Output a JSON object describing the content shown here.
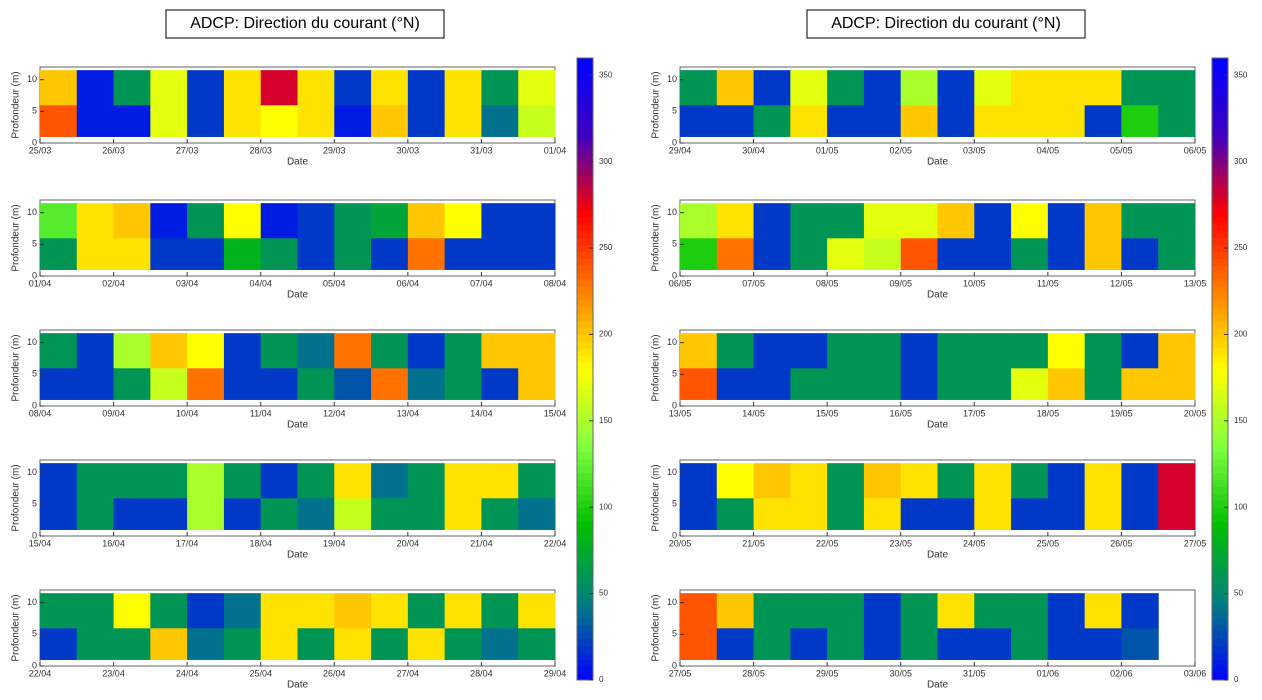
{
  "chart_data": [
    {
      "type": "heatmap",
      "title": "ADCP: Direction du courant (°N)",
      "x_label": "Date",
      "y_label": "Profondeur (m)",
      "categories": [
        "25/03",
        "26/03",
        "27/03",
        "28/03",
        "29/03",
        "30/03",
        "31/03",
        "01/04"
      ],
      "ylim": [
        0,
        12
      ],
      "yticks": [
        0,
        5,
        10
      ],
      "y_bins": [
        1,
        6,
        11.5
      ],
      "values": [
        [
          240,
          10,
          10,
          170,
          20,
          190,
          180,
          190,
          10,
          200,
          20,
          190,
          40,
          160
        ],
        [
          200,
          10,
          60,
          170,
          20,
          190,
          280,
          190,
          20,
          190,
          20,
          190,
          60,
          170
        ]
      ],
      "colorbar": {
        "lim": [
          0,
          360
        ],
        "ticks": [
          0,
          50,
          100,
          150,
          200,
          250,
          300,
          350
        ],
        "colormap": [
          "#0000ff",
          "#008080",
          "#00c000",
          "#80ff40",
          "#ffff00",
          "#ff8000",
          "#ff0000",
          "#4000c0",
          "#0000ff"
        ]
      }
    },
    {
      "type": "heatmap",
      "x_label": "Date",
      "y_label": "Profondeur (m)",
      "categories": [
        "01/04",
        "02/04",
        "03/04",
        "04/04",
        "05/04",
        "06/04",
        "07/04",
        "08/04"
      ],
      "ylim": [
        0,
        12
      ],
      "yticks": [
        0,
        5,
        10
      ],
      "y_bins": [
        1,
        6,
        11.5
      ],
      "values": [
        [
          60,
          190,
          190,
          20,
          20,
          80,
          60,
          20,
          60,
          20,
          230,
          20,
          20,
          20
        ],
        [
          120,
          190,
          200,
          10,
          60,
          180,
          10,
          20,
          60,
          70,
          200,
          180,
          20,
          20
        ]
      ]
    },
    {
      "type": "heatmap",
      "x_label": "Date",
      "y_label": "Profondeur (m)",
      "categories": [
        "08/04",
        "09/04",
        "10/04",
        "11/04",
        "12/04",
        "13/04",
        "14/04",
        "15/04"
      ],
      "ylim": [
        0,
        12
      ],
      "yticks": [
        0,
        5,
        10
      ],
      "y_bins": [
        1,
        6,
        11.5
      ],
      "values": [
        [
          20,
          20,
          60,
          160,
          230,
          20,
          20,
          60,
          30,
          230,
          40,
          60,
          20,
          200
        ],
        [
          60,
          20,
          150,
          200,
          180,
          20,
          60,
          40,
          230,
          60,
          20,
          60,
          200,
          200
        ]
      ]
    },
    {
      "type": "heatmap",
      "x_label": "Date",
      "y_label": "Profondeur (m)",
      "categories": [
        "15/04",
        "16/04",
        "17/04",
        "18/04",
        "19/04",
        "20/04",
        "21/04",
        "22/04"
      ],
      "ylim": [
        0,
        12
      ],
      "yticks": [
        0,
        5,
        10
      ],
      "y_bins": [
        1,
        6,
        11.5
      ],
      "values": [
        [
          20,
          60,
          20,
          20,
          150,
          20,
          60,
          40,
          160,
          60,
          60,
          190,
          60,
          40
        ],
        [
          20,
          60,
          60,
          60,
          150,
          60,
          20,
          60,
          190,
          40,
          60,
          190,
          190,
          60
        ]
      ]
    },
    {
      "type": "heatmap",
      "x_label": "Date",
      "y_label": "Profondeur (m)",
      "categories": [
        "22/04",
        "23/04",
        "24/04",
        "25/04",
        "26/04",
        "27/04",
        "28/04",
        "29/04"
      ],
      "ylim": [
        0,
        12
      ],
      "yticks": [
        0,
        5,
        10
      ],
      "y_bins": [
        1,
        6,
        11.5
      ],
      "values": [
        [
          20,
          60,
          60,
          200,
          40,
          60,
          190,
          60,
          190,
          60,
          190,
          60,
          40,
          60
        ],
        [
          60,
          60,
          180,
          60,
          20,
          40,
          190,
          190,
          200,
          190,
          60,
          190,
          60,
          190
        ]
      ]
    },
    {
      "type": "heatmap",
      "title": "ADCP: Direction du courant (°N)",
      "x_label": "Date",
      "y_label": "Profondeur (m)",
      "categories": [
        "29/04",
        "30/04",
        "01/05",
        "02/05",
        "03/05",
        "04/05",
        "05/05",
        "06/05"
      ],
      "ylim": [
        0,
        12
      ],
      "yticks": [
        0,
        5,
        10
      ],
      "y_bins": [
        1,
        6,
        11.5
      ],
      "values": [
        [
          20,
          20,
          60,
          190,
          20,
          20,
          200,
          20,
          190,
          190,
          190,
          20,
          100,
          60
        ],
        [
          60,
          200,
          20,
          170,
          60,
          20,
          150,
          20,
          170,
          190,
          190,
          190,
          60,
          60
        ]
      ],
      "colorbar": {
        "lim": [
          0,
          360
        ],
        "ticks": [
          0,
          50,
          100,
          150,
          200,
          250,
          300,
          350
        ],
        "colormap": [
          "#0000ff",
          "#008080",
          "#00c000",
          "#80ff40",
          "#ffff00",
          "#ff8000",
          "#ff0000",
          "#4000c0",
          "#0000ff"
        ]
      }
    },
    {
      "type": "heatmap",
      "x_label": "Date",
      "y_label": "Profondeur (m)",
      "categories": [
        "06/05",
        "07/05",
        "08/05",
        "09/05",
        "10/05",
        "11/05",
        "12/05",
        "13/05"
      ],
      "ylim": [
        0,
        12
      ],
      "yticks": [
        0,
        5,
        10
      ],
      "y_bins": [
        1,
        6,
        11.5
      ],
      "values": [
        [
          100,
          230,
          20,
          60,
          170,
          160,
          240,
          20,
          20,
          60,
          20,
          200,
          20,
          60
        ],
        [
          150,
          190,
          20,
          60,
          60,
          170,
          170,
          200,
          20,
          180,
          20,
          200,
          60,
          60
        ]
      ]
    },
    {
      "type": "heatmap",
      "x_label": "Date",
      "y_label": "Profondeur (m)",
      "categories": [
        "13/05",
        "14/05",
        "15/05",
        "16/05",
        "17/05",
        "18/05",
        "19/05",
        "20/05"
      ],
      "ylim": [
        0,
        12
      ],
      "yticks": [
        0,
        5,
        10
      ],
      "y_bins": [
        1,
        6,
        11.5
      ],
      "values": [
        [
          240,
          20,
          20,
          60,
          60,
          60,
          20,
          60,
          60,
          170,
          200,
          60,
          200,
          200
        ],
        [
          200,
          60,
          20,
          20,
          60,
          60,
          20,
          60,
          60,
          60,
          180,
          60,
          20,
          200
        ]
      ]
    },
    {
      "type": "heatmap",
      "x_label": "Date",
      "y_label": "Profondeur (m)",
      "categories": [
        "20/05",
        "21/05",
        "22/05",
        "23/05",
        "24/05",
        "25/05",
        "26/05",
        "27/05"
      ],
      "ylim": [
        0,
        12
      ],
      "yticks": [
        0,
        5,
        10
      ],
      "y_bins": [
        1,
        6,
        11.5
      ],
      "values": [
        [
          20,
          60,
          190,
          190,
          60,
          190,
          20,
          20,
          190,
          20,
          20,
          190,
          20,
          280
        ],
        [
          20,
          180,
          200,
          190,
          60,
          200,
          190,
          60,
          190,
          60,
          20,
          190,
          20,
          280
        ]
      ]
    },
    {
      "type": "heatmap",
      "x_label": "Date",
      "y_label": "Profondeur (m)",
      "categories": [
        "27/05",
        "28/05",
        "29/05",
        "30/05",
        "31/05",
        "01/06",
        "02/06",
        "03/06"
      ],
      "ylim": [
        0,
        12
      ],
      "yticks": [
        0,
        5,
        10
      ],
      "y_bins": [
        1,
        6,
        11.5
      ],
      "values": [
        [
          240,
          20,
          60,
          20,
          60,
          20,
          60,
          20,
          20,
          60,
          20,
          20,
          30,
          null
        ],
        [
          240,
          200,
          60,
          60,
          60,
          20,
          60,
          190,
          60,
          60,
          20,
          190,
          20,
          null
        ]
      ]
    }
  ]
}
